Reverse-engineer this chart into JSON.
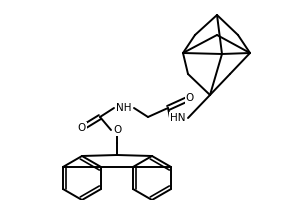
{
  "background_color": "#ffffff",
  "line_color": "#000000",
  "line_width": 1.4,
  "figsize": [
    3.0,
    2.0
  ],
  "dpi": 100,
  "xlim": [
    0,
    300
  ],
  "ylim": [
    0,
    200
  ]
}
